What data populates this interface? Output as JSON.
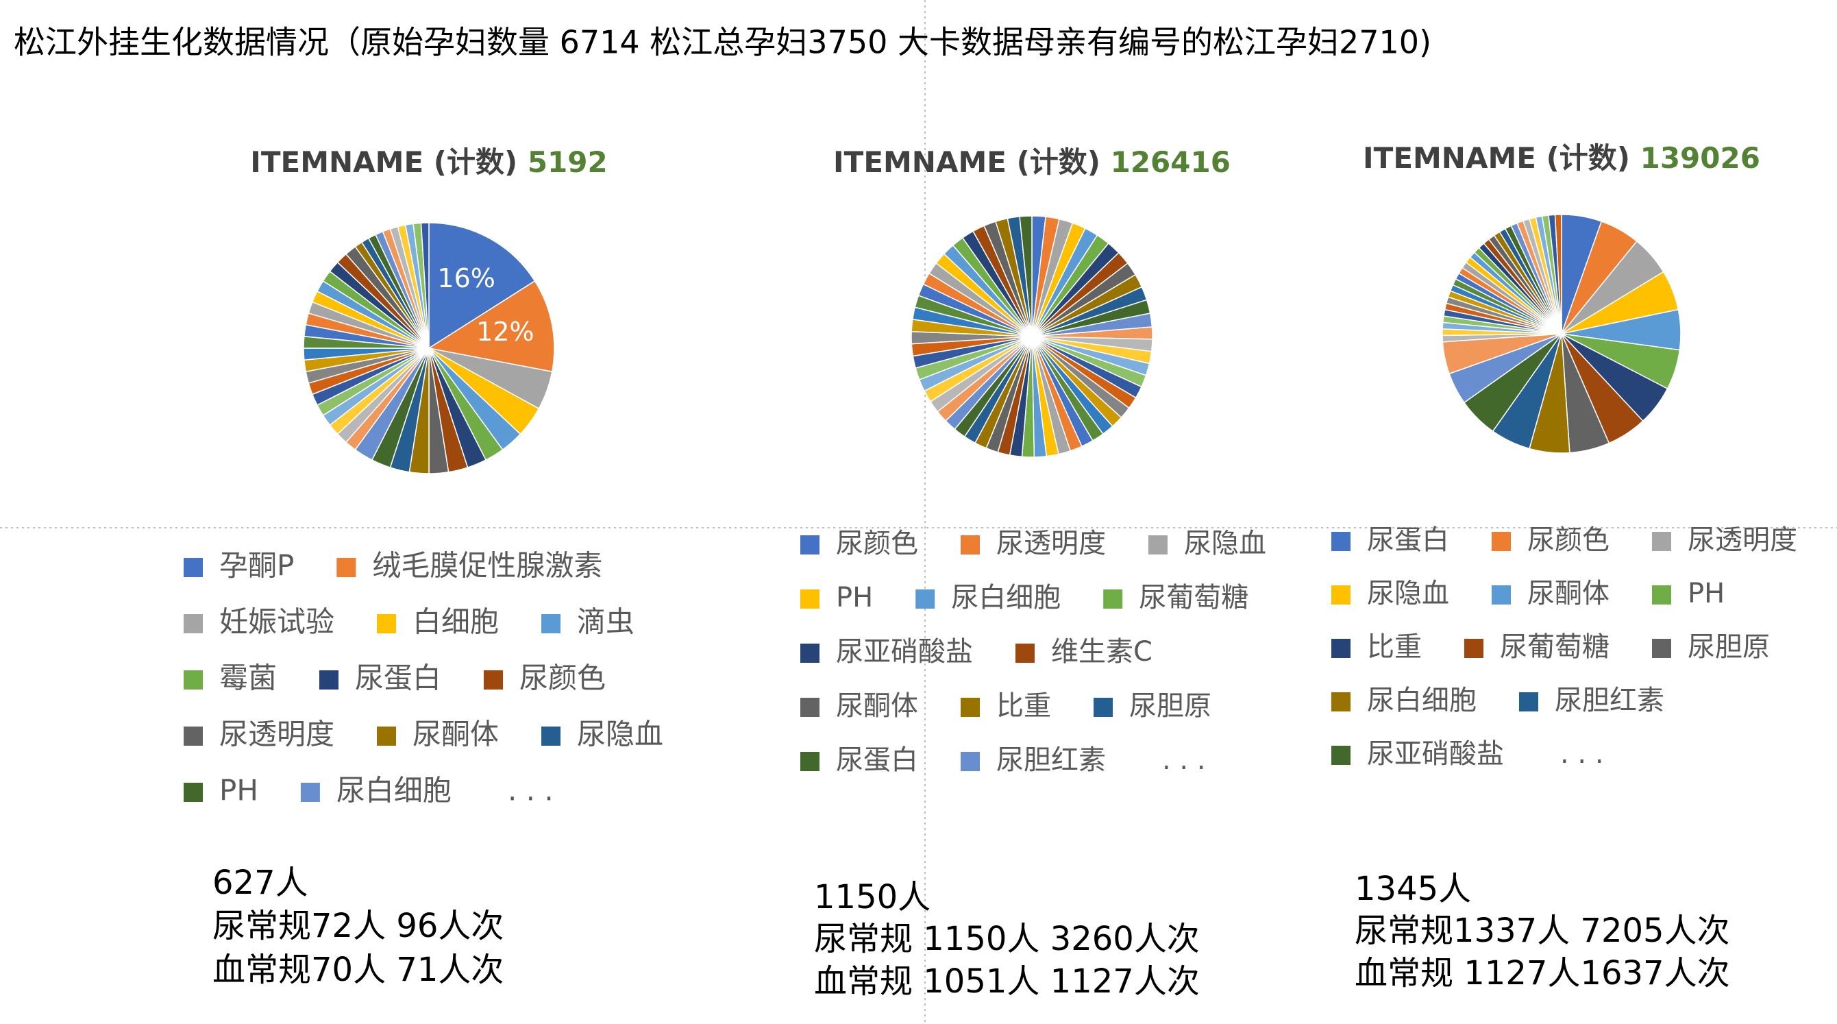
{
  "title": "松江外挂生化数据情况（原始孕妇数量 6714 松江总孕妇3750  大卡数据母亲有编号的松江孕妇2710)",
  "chart_data": [
    {
      "type": "pie",
      "title": "ITEMNAME (计数)",
      "total": 5192,
      "colors": [
        "#4472c4",
        "#ed7d31",
        "#a5a5a5",
        "#ffc000",
        "#5b9bd5",
        "#70ad47",
        "#264478",
        "#9e480e",
        "#636363",
        "#997300",
        "#255e91",
        "#43682b",
        "#698ed0",
        "#f1975a",
        "#b7b7b7",
        "#ffcd33",
        "#7cafdd",
        "#8cc168",
        "#335aa1",
        "#d26012",
        "#848484",
        "#cc9a00",
        "#327dc2",
        "#5a8a39"
      ],
      "categories": [
        "孕酮P",
        "绒毛膜促性腺激素",
        "妊娠试验",
        "白细胞",
        "滴虫",
        "霉菌",
        "尿蛋白",
        "尿颜色",
        "尿透明度",
        "尿酮体",
        "尿隐血",
        "PH",
        "尿白细胞",
        null,
        null,
        null,
        null,
        null,
        null,
        null,
        null,
        null,
        null,
        null,
        null,
        null,
        null,
        null,
        null,
        null,
        null,
        null,
        null,
        null,
        null,
        null,
        null,
        null,
        null,
        null,
        null,
        null,
        null
      ],
      "values": [
        16,
        12,
        5,
        4,
        3,
        2.5,
        2.5,
        2.5,
        2.5,
        2.5,
        2.5,
        2.5,
        2.5,
        1.5,
        1.5,
        1.5,
        1.5,
        1.5,
        1.5,
        1.5,
        1.5,
        1.5,
        1.5,
        1.5,
        1.5,
        1.5,
        1.5,
        1.5,
        1.5,
        1.5,
        1.5,
        1.5,
        1.5,
        1,
        1,
        1,
        1,
        1,
        1,
        1,
        1,
        1,
        1
      ],
      "value_labels": [
        "16%",
        "12%",
        null,
        null,
        null,
        null,
        null,
        null,
        null,
        null,
        null,
        null,
        null,
        null,
        null,
        null,
        null,
        null,
        null,
        null,
        null,
        null,
        null,
        null,
        null,
        null,
        null,
        null,
        null,
        null,
        null,
        null,
        null,
        null,
        null,
        null,
        null,
        null,
        null,
        null,
        null,
        null,
        null
      ],
      "legend_more": ". . ."
    },
    {
      "type": "pie",
      "title": "ITEMNAME (计数)",
      "total": 126416,
      "colors": [
        "#4472c4",
        "#ed7d31",
        "#a5a5a5",
        "#ffc000",
        "#5b9bd5",
        "#70ad47",
        "#264478",
        "#9e480e",
        "#636363",
        "#997300",
        "#255e91",
        "#43682b",
        "#698ed0",
        "#f1975a",
        "#b7b7b7",
        "#ffcd33",
        "#7cafdd",
        "#8cc168",
        "#335aa1",
        "#d26012",
        "#848484",
        "#cc9a00",
        "#327dc2",
        "#5a8a39"
      ],
      "categories": [
        "尿颜色",
        "尿透明度",
        "尿隐血",
        "PH",
        "尿白细胞",
        "尿葡萄糖",
        "尿亚硝酸盐",
        "维生素C",
        "尿酮体",
        "比重",
        "尿胆原",
        "尿蛋白",
        "尿胆红素",
        null,
        null,
        null,
        null,
        null,
        null,
        null,
        null,
        null,
        null,
        null,
        null,
        null,
        null,
        null,
        null,
        null,
        null,
        null,
        null,
        null,
        null,
        null,
        null,
        null,
        null,
        null,
        null,
        null,
        null,
        null,
        null,
        null,
        null,
        null,
        null,
        null,
        null,
        null,
        null,
        null,
        null,
        null,
        null,
        null,
        null,
        null
      ],
      "values": [
        1.8,
        1.8,
        1.8,
        1.8,
        1.8,
        1.8,
        1.8,
        1.8,
        1.8,
        1.8,
        1.8,
        1.8,
        1.8,
        1.6,
        1.6,
        1.6,
        1.6,
        1.6,
        1.6,
        1.6,
        1.6,
        1.6,
        1.6,
        1.6,
        1.6,
        1.6,
        1.6,
        1.6,
        1.6,
        1.6,
        1.6,
        1.6,
        1.6,
        1.6,
        1.6,
        1.6,
        1.6,
        1.6,
        1.6,
        1.6,
        1.6,
        1.6,
        1.6,
        1.6,
        1.6,
        1.6,
        1.6,
        1.6,
        1.6,
        1.6,
        1.6,
        1.6,
        1.6,
        1.6,
        1.6,
        1.6,
        1.6,
        1.6,
        1.6,
        1.6
      ],
      "legend_more": ". . ."
    },
    {
      "type": "pie",
      "title": "ITEMNAME (计数)",
      "total": 139026,
      "colors": [
        "#4472c4",
        "#ed7d31",
        "#a5a5a5",
        "#ffc000",
        "#5b9bd5",
        "#70ad47",
        "#264478",
        "#9e480e",
        "#636363",
        "#997300",
        "#255e91",
        "#43682b",
        "#698ed0",
        "#f1975a",
        "#b7b7b7",
        "#ffcd33",
        "#7cafdd",
        "#8cc168",
        "#335aa1",
        "#d26012",
        "#848484",
        "#cc9a00",
        "#327dc2",
        "#5a8a39"
      ],
      "categories": [
        "尿蛋白",
        "尿颜色",
        "尿透明度",
        "尿隐血",
        "尿酮体",
        "PH",
        "比重",
        "尿葡萄糖",
        "尿胆原",
        "尿白细胞",
        "尿胆红素",
        "尿亚硝酸盐",
        null,
        null,
        null,
        null,
        null,
        null,
        null,
        null,
        null,
        null,
        null,
        null,
        null,
        null,
        null,
        null,
        null,
        null,
        null,
        null,
        null,
        null,
        null,
        null,
        null,
        null,
        null,
        null,
        null,
        null,
        null,
        null
      ],
      "values": [
        5,
        5,
        5,
        5,
        5,
        5,
        5,
        5,
        5,
        5,
        5,
        5,
        4,
        4,
        0.8,
        0.8,
        0.8,
        0.8,
        0.8,
        0.8,
        0.8,
        0.8,
        0.8,
        0.8,
        0.8,
        0.8,
        0.8,
        0.8,
        0.8,
        0.8,
        0.8,
        0.8,
        0.8,
        0.8,
        0.8,
        0.8,
        0.8,
        0.8,
        0.8,
        0.8,
        0.8,
        0.8,
        0.8,
        0.8
      ],
      "legend_more": ". . ."
    }
  ],
  "notes": [
    [
      "627人",
      "尿常规72人 96人次",
      "血常规70人 71人次"
    ],
    [
      "1150人",
      "尿常规 1150人 3260人次",
      "血常规 1051人 1127人次"
    ],
    [
      "1345人",
      "尿常规1337人 7205人次",
      "血常规 1127人1637人次"
    ]
  ]
}
